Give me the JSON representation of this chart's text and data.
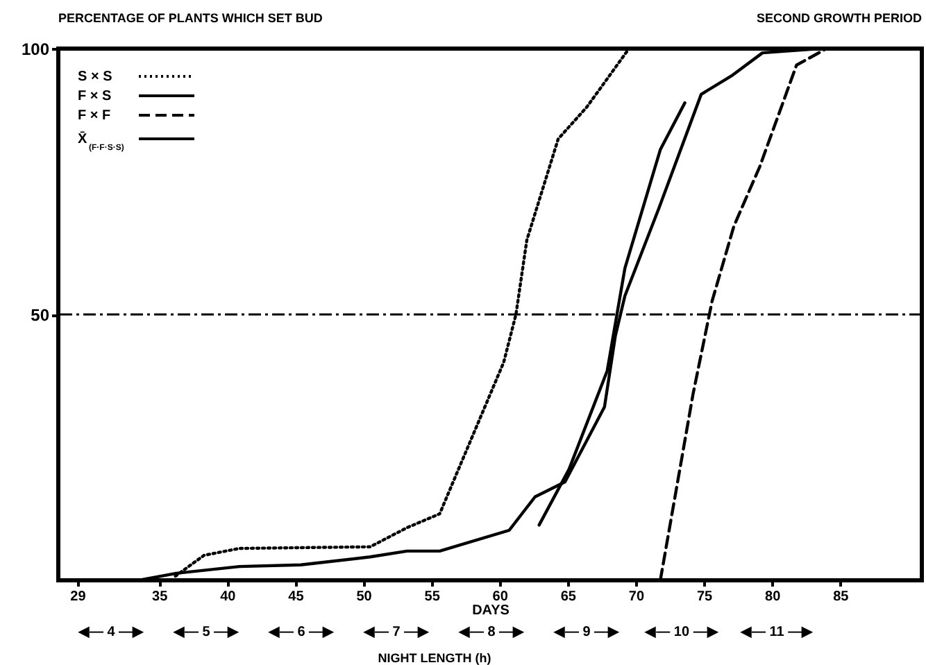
{
  "chart_data": {
    "type": "line",
    "title": "PERCENTAGE OF PLANTS WHICH SET BUD",
    "subtitle": "SECOND GROWTH PERIOD",
    "xlabel": "DAYS",
    "annotations": [
      "◀— 4 —▶",
      "◀— 5 —▶",
      "◀— 6 —▶",
      "◀— 7 —▶",
      "◀— 8 —▶",
      "◀— 9 —▶",
      "◀— 10 —▶",
      "◀— 11 —▶",
      "NIGHT LENGTH (h)"
    ],
    "xlim": [
      27.6,
      91
    ],
    "xticks": [
      29,
      35,
      40,
      45,
      50,
      55,
      60,
      65,
      70,
      75,
      80,
      85
    ],
    "ylim": [
      0,
      100
    ],
    "yticks": [
      50,
      100
    ],
    "legend": "top left",
    "grid": false,
    "ref_lines": [
      {
        "axis": "y",
        "value": 50,
        "line_style": "dashdot",
        "color": "#000000"
      }
    ],
    "series": [
      {
        "name": "S × S",
        "color": "#000000",
        "line_style": "dotted",
        "x": [
          36.2,
          38.3,
          40.9,
          50.5,
          53.2,
          55.6,
          57.0,
          60.3,
          61.2,
          62.0,
          64.3,
          66.4,
          69.5
        ],
        "values": [
          0.8,
          4.7,
          6.0,
          6.3,
          9.9,
          12.5,
          21,
          41,
          50,
          64,
          83,
          89,
          100
        ]
      },
      {
        "name": "F × S",
        "color": "#000000",
        "line_style": "solid",
        "x": [
          29,
          33.5,
          36.2,
          40.9,
          45.4,
          50.5,
          53.2,
          55.6,
          60.7,
          62.6,
          64.8,
          67.7,
          68.5,
          69.2,
          71.7,
          74.8,
          77.1,
          79.3,
          83.5
        ],
        "values": [
          0,
          0,
          1.3,
          2.6,
          2.9,
          4.4,
          5.5,
          5.5,
          9.4,
          15.7,
          18.5,
          32.6,
          46,
          53.5,
          70,
          91.4,
          95,
          99.2,
          100
        ]
      },
      {
        "name": "F × F",
        "color": "#000000",
        "line_style": "dashed",
        "x": [
          71.8,
          74.2,
          75.6,
          77.2,
          79.1,
          81.8,
          84.0
        ],
        "values": [
          0,
          35,
          52.5,
          66.6,
          77.8,
          96.9,
          100
        ]
      },
      {
        "name": "X̄$_{(F·F·S·S)}$",
        "color": "#000000",
        "line_style": "solid",
        "x": [
          62.9,
          65.1,
          67.9,
          69.2,
          71.8,
          73.6
        ],
        "values": [
          10.4,
          20.9,
          39.4,
          58.7,
          81,
          89.8
        ]
      }
    ]
  }
}
